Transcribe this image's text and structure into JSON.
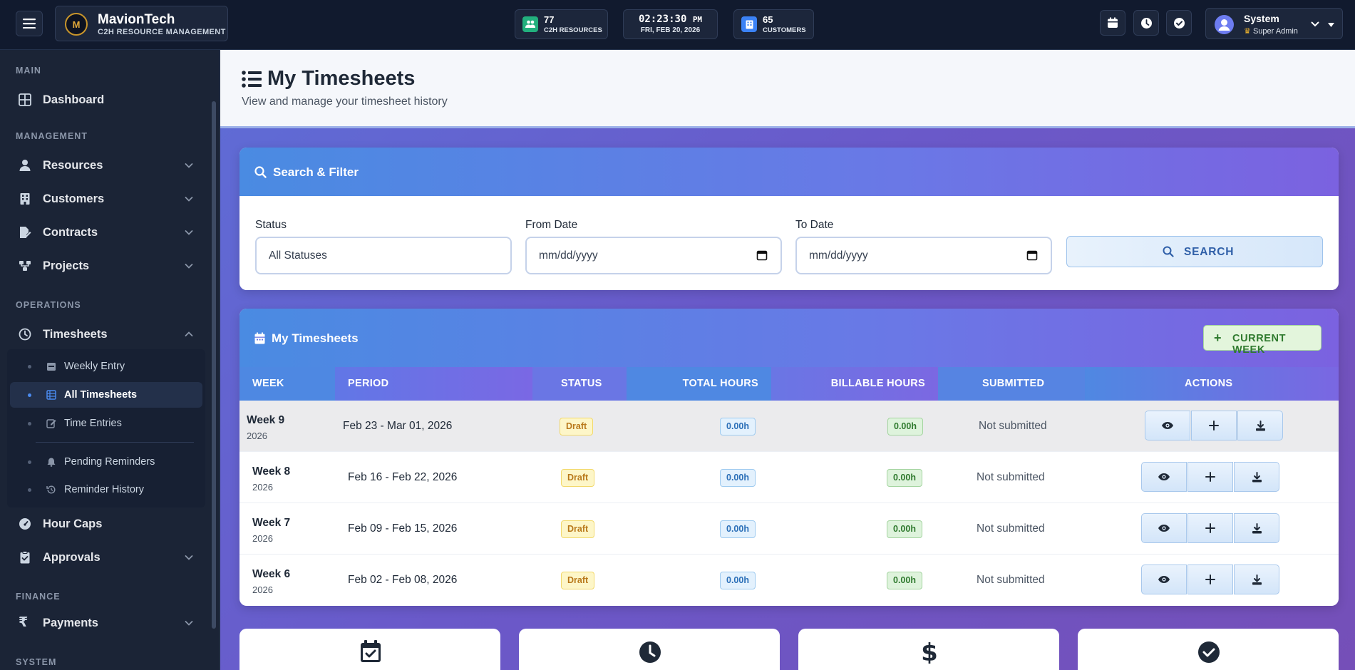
{
  "brand": {
    "name": "MavionTech",
    "subtitle": "C2H RESOURCE MANAGEMENT",
    "logo_letter": "M"
  },
  "topbar": {
    "resources": {
      "count": "77",
      "label": "C2H RESOURCES"
    },
    "clock": {
      "time": "02:23:30",
      "ampm": "PM",
      "date": "FRI, FEB 20, 2026"
    },
    "customers": {
      "count": "65",
      "label": "CUSTOMERS"
    },
    "user": {
      "name": "System",
      "role": "Super Admin"
    }
  },
  "sidebar": {
    "sections": {
      "main": "MAIN",
      "management": "MANAGEMENT",
      "operations": "OPERATIONS",
      "finance": "FINANCE",
      "system": "SYSTEM"
    },
    "items": {
      "dashboard": "Dashboard",
      "resources": "Resources",
      "customers": "Customers",
      "contracts": "Contracts",
      "projects": "Projects",
      "timesheets": "Timesheets",
      "hour_caps": "Hour Caps",
      "approvals": "Approvals",
      "payments": "Payments"
    },
    "timesheet_sub": {
      "weekly_entry": "Weekly Entry",
      "all_timesheets": "All Timesheets",
      "time_entries": "Time Entries",
      "pending_reminders": "Pending Reminders",
      "reminder_history": "Reminder History"
    }
  },
  "page": {
    "title": "My Timesheets",
    "subtitle": "View and manage your timesheet history"
  },
  "filter": {
    "title": "Search & Filter",
    "status_label": "Status",
    "status_value": "All Statuses",
    "from_label": "From Date",
    "from_value": "mm/dd/yyyy",
    "to_label": "To Date",
    "to_value": "mm/dd/yyyy",
    "search_label": "SEARCH"
  },
  "table": {
    "title": "My Timesheets",
    "current_week_label": "CURRENT WEEK",
    "columns": {
      "week": "WEEK",
      "period": "PERIOD",
      "status": "STATUS",
      "total": "TOTAL HOURS",
      "billable": "BILLABLE HOURS",
      "submitted": "SUBMITTED",
      "actions": "ACTIONS"
    },
    "rows": [
      {
        "week": "Week 9",
        "year": "2026",
        "period": "Feb 23 - Mar 01, 2026",
        "status": "Draft",
        "total": "0.00h",
        "billable": "0.00h",
        "submitted": "Not submitted"
      },
      {
        "week": "Week 8",
        "year": "2026",
        "period": "Feb 16 - Feb 22, 2026",
        "status": "Draft",
        "total": "0.00h",
        "billable": "0.00h",
        "submitted": "Not submitted"
      },
      {
        "week": "Week 7",
        "year": "2026",
        "period": "Feb 09 - Feb 15, 2026",
        "status": "Draft",
        "total": "0.00h",
        "billable": "0.00h",
        "submitted": "Not submitted"
      },
      {
        "week": "Week 6",
        "year": "2026",
        "period": "Feb 02 - Feb 08, 2026",
        "status": "Draft",
        "total": "0.00h",
        "billable": "0.00h",
        "submitted": "Not submitted"
      }
    ]
  },
  "colors": {
    "accent_blue": "#4a8be2",
    "accent_purple": "#7b62e0",
    "sidebar_bg": "#1b2436",
    "topbar_bg": "#111a2e"
  }
}
